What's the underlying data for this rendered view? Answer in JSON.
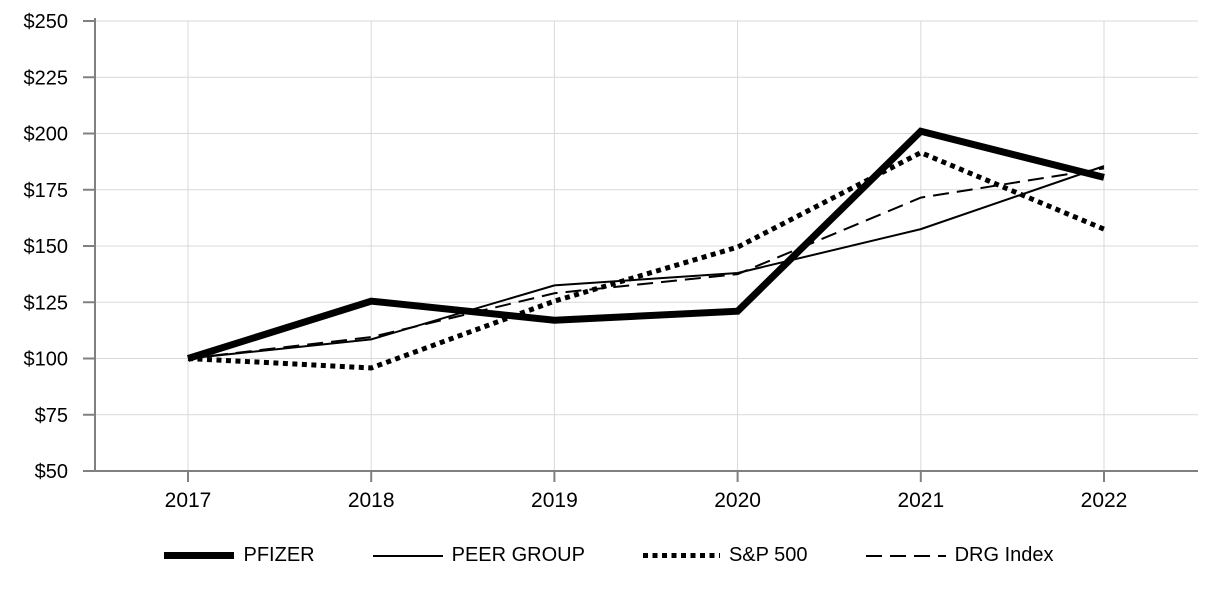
{
  "chart_data": {
    "type": "line",
    "x_labels": [
      "2017",
      "2018",
      "2019",
      "2020",
      "2021",
      "2022"
    ],
    "series": [
      {
        "id": "pfizer",
        "name": "PFIZER",
        "line_style": "thick-solid",
        "values": [
          100,
          125.5,
          117.0,
          121.0,
          201.0,
          180.5
        ]
      },
      {
        "id": "peer-group",
        "name": "PEER GROUP",
        "line_style": "thin-solid",
        "values": [
          100,
          108.5,
          132.5,
          138.0,
          157.5,
          185.5
        ]
      },
      {
        "id": "sp500",
        "name": "S&P 500",
        "line_style": "dotted",
        "values": [
          100,
          95.8,
          125.5,
          149.5,
          191.5,
          157.5
        ]
      },
      {
        "id": "drg-index",
        "name": "DRG Index",
        "line_style": "dashed",
        "values": [
          100,
          109.5,
          129.0,
          137.5,
          171.5,
          184.5
        ]
      }
    ],
    "ylim": [
      50,
      250
    ],
    "ytick_step": 25,
    "yticks": [
      {
        "value": 250,
        "label": "$250"
      },
      {
        "value": 225,
        "label": "$225"
      },
      {
        "value": 200,
        "label": "$200"
      },
      {
        "value": 175,
        "label": "$175"
      },
      {
        "value": 150,
        "label": "$150"
      },
      {
        "value": 125,
        "label": "$125"
      },
      {
        "value": 100,
        "label": "$100"
      },
      {
        "value": 75,
        "label": "$75"
      },
      {
        "value": 50,
        "label": "$50"
      }
    ],
    "title": "",
    "xlabel": "",
    "ylabel": "",
    "grid": true,
    "legend_position": "bottom",
    "colors": {
      "line": "#000000",
      "axis": "#808080",
      "gridline": "#d9d9d9",
      "background": "#ffffff",
      "text": "#000000"
    }
  }
}
